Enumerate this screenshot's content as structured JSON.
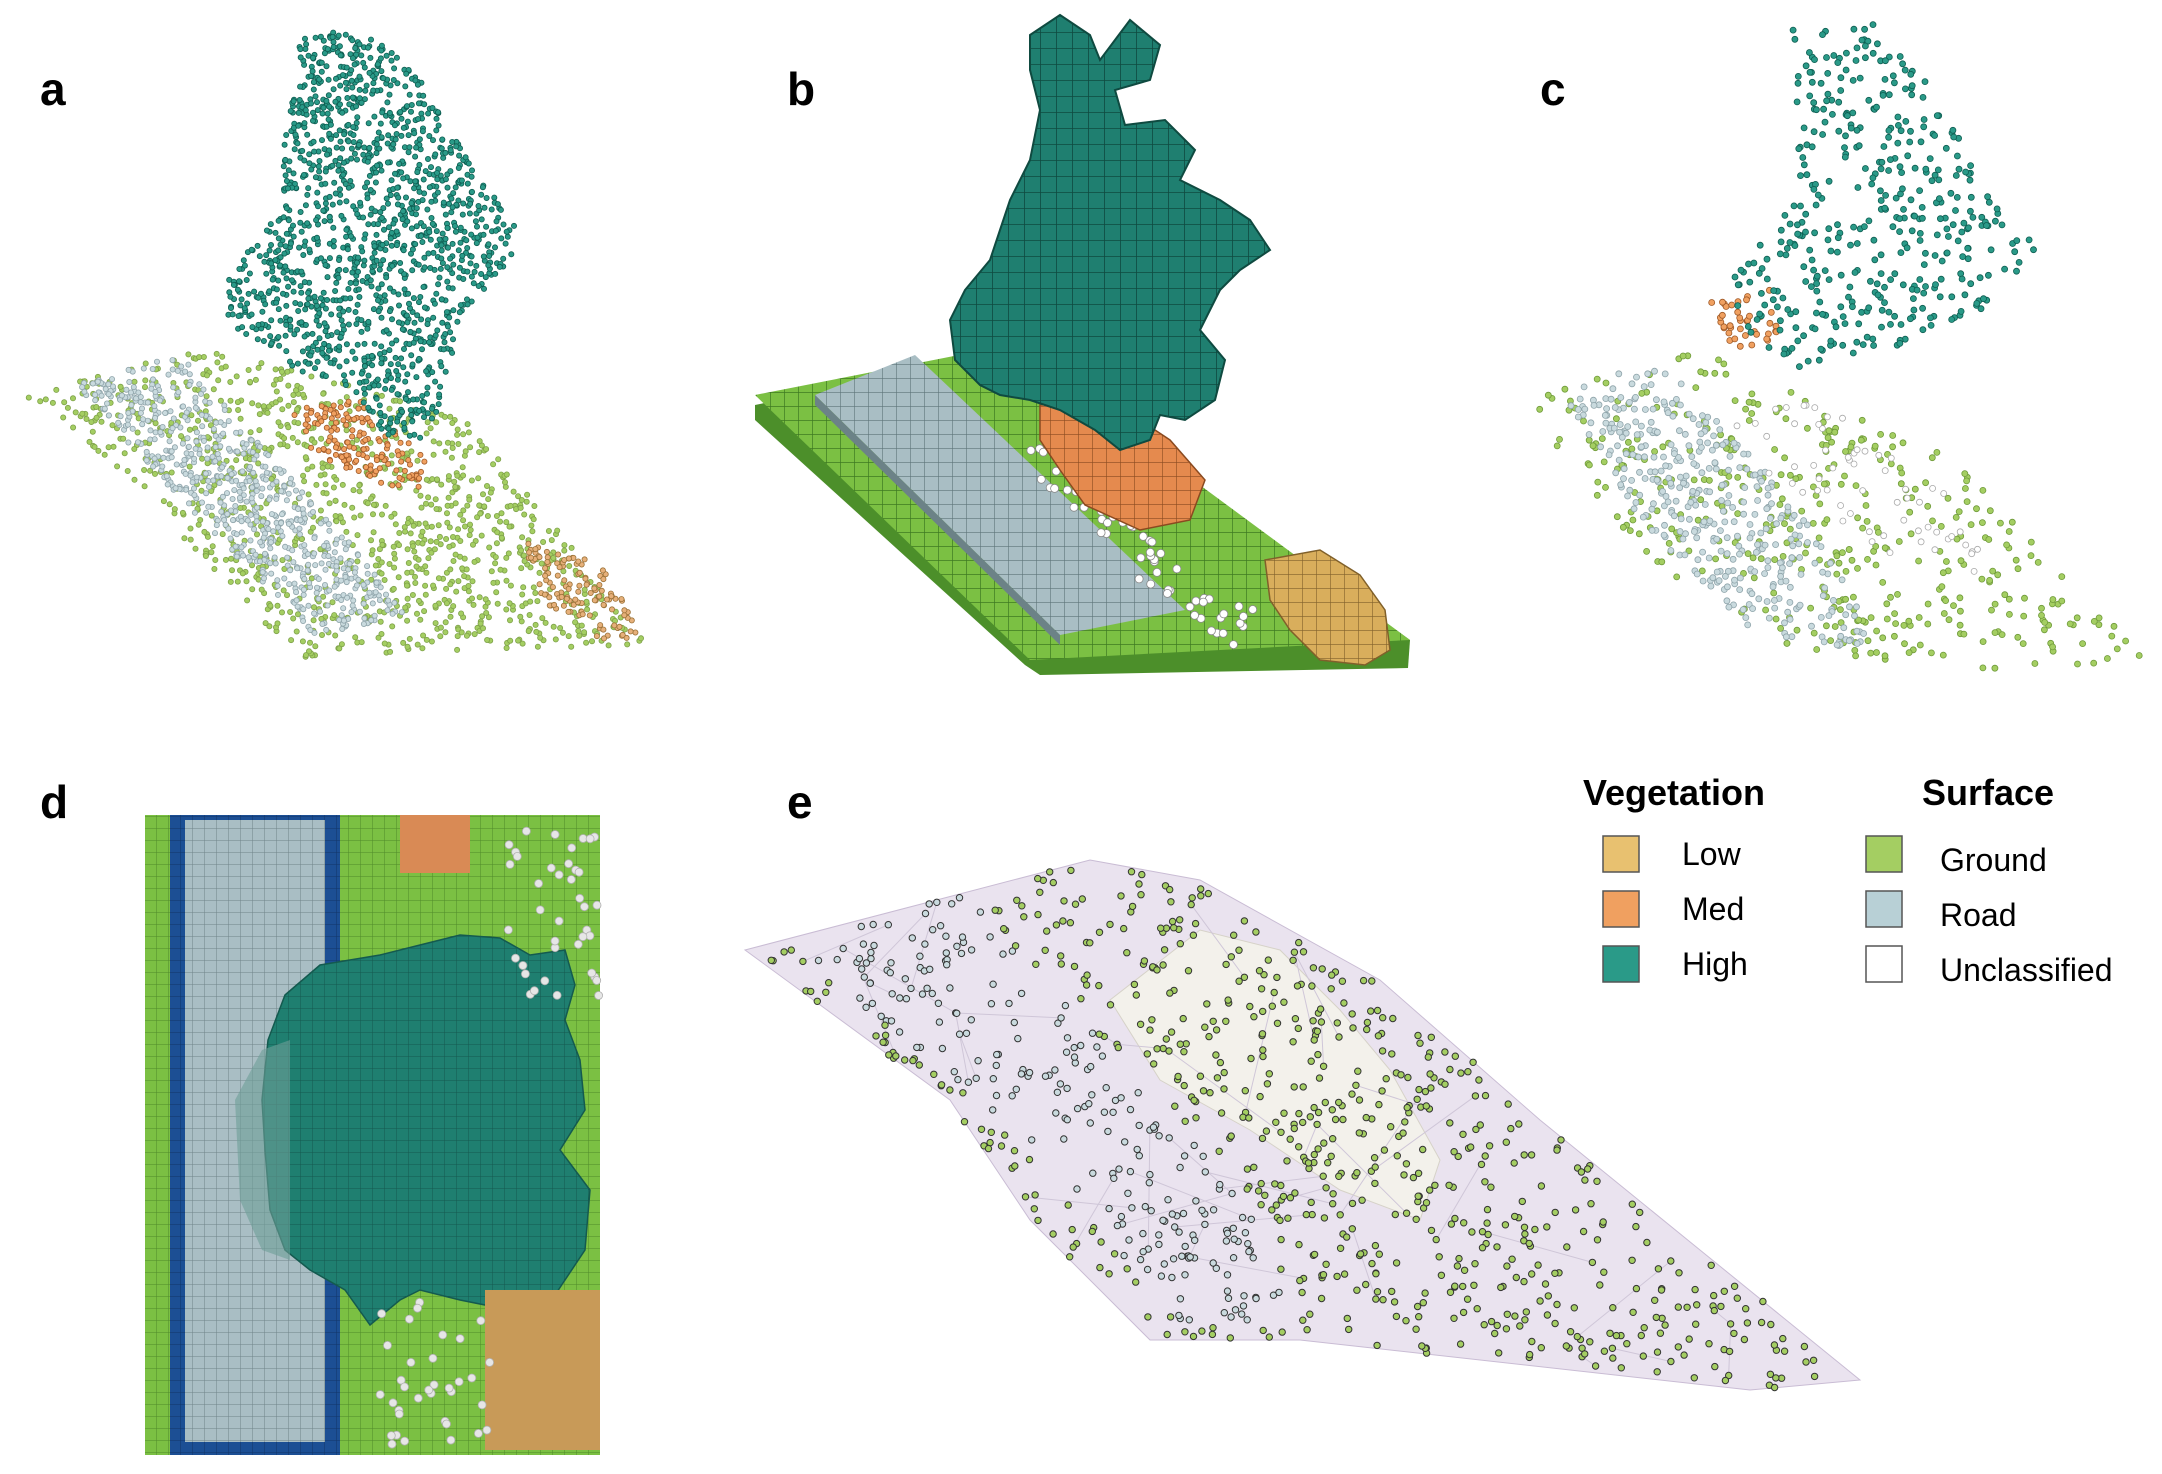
{
  "panels": {
    "a": "a",
    "b": "b",
    "c": "c",
    "d": "d",
    "e": "e"
  },
  "legend": {
    "vegetation": {
      "heading": "Vegetation",
      "items": [
        {
          "label": "Low",
          "color": "#E8C170"
        },
        {
          "label": "Med",
          "color": "#F0A060"
        },
        {
          "label": "High",
          "color": "#2A9A88"
        }
      ]
    },
    "surface": {
      "heading": "Surface",
      "items": [
        {
          "label": "Ground",
          "color": "#A4CE62"
        },
        {
          "label": "Road",
          "color": "#B8D0D6"
        },
        {
          "label": "Unclassified",
          "color": "#FFFFFF"
        }
      ]
    }
  },
  "colors": {
    "high": "#1F7F70",
    "high_point": "#2A9A88",
    "med": "#E58A4E",
    "low": "#D9AE5C",
    "ground": "#7BC043",
    "ground_point": "#A4CE62",
    "road": "#A9BEC4",
    "road_point": "#C9DADE",
    "edge_blue": "#1C4F94",
    "mesh_fill": "#EAE3EF",
    "mesh_center": "#F2F0EA"
  }
}
